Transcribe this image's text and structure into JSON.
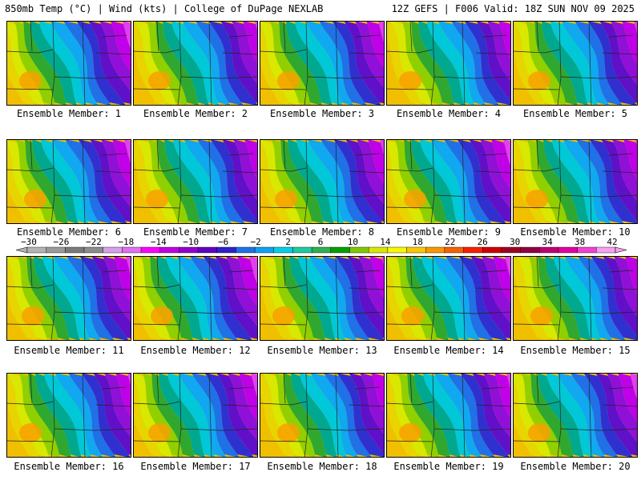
{
  "header": {
    "left": "850mb Temp (°C) | Wind (kts) | College of DuPage NEXLAB",
    "right": "12Z GEFS | F006 Valid: 18Z SUN NOV 09 2025"
  },
  "legend": {
    "labels": [
      "−30",
      "−26",
      "−22",
      "−18",
      "−14",
      "−10",
      "−6",
      "−2",
      "2",
      "6",
      "10",
      "14",
      "18",
      "22",
      "26",
      "30",
      "34",
      "38",
      "42"
    ],
    "colors": [
      "#b4b4b4",
      "#9a9a9a",
      "#7a7a7a",
      "#8c8c8c",
      "#d8a0e8",
      "#e070f0",
      "#ff00ff",
      "#c000e0",
      "#9000d0",
      "#6000c0",
      "#3020c8",
      "#2070e8",
      "#10a0f0",
      "#00d0e0",
      "#20c8a0",
      "#30b050",
      "#00a000",
      "#80c800",
      "#d8e800",
      "#f8f800",
      "#f8c800",
      "#f89800",
      "#f86000",
      "#f82000",
      "#d00000",
      "#a00020",
      "#900040",
      "#c00070",
      "#e000a0",
      "#f040d0",
      "#f8a0f0"
    ]
  },
  "panels": [
    {
      "label": "Ensemble Member: 1"
    },
    {
      "label": "Ensemble Member: 2"
    },
    {
      "label": "Ensemble Member: 3"
    },
    {
      "label": "Ensemble Member: 4"
    },
    {
      "label": "Ensemble Member: 5"
    },
    {
      "label": "Ensemble Member: 6"
    },
    {
      "label": "Ensemble Member: 7"
    },
    {
      "label": "Ensemble Member: 8"
    },
    {
      "label": "Ensemble Member: 9"
    },
    {
      "label": "Ensemble Member: 10"
    },
    {
      "label": "Ensemble Member: 11"
    },
    {
      "label": "Ensemble Member: 12"
    },
    {
      "label": "Ensemble Member: 13"
    },
    {
      "label": "Ensemble Member: 14"
    },
    {
      "label": "Ensemble Member: 15"
    },
    {
      "label": "Ensemble Member: 16"
    },
    {
      "label": "Ensemble Member: 17"
    },
    {
      "label": "Ensemble Member: 18"
    },
    {
      "label": "Ensemble Member: 19"
    },
    {
      "label": "Ensemble Member: 20"
    }
  ]
}
